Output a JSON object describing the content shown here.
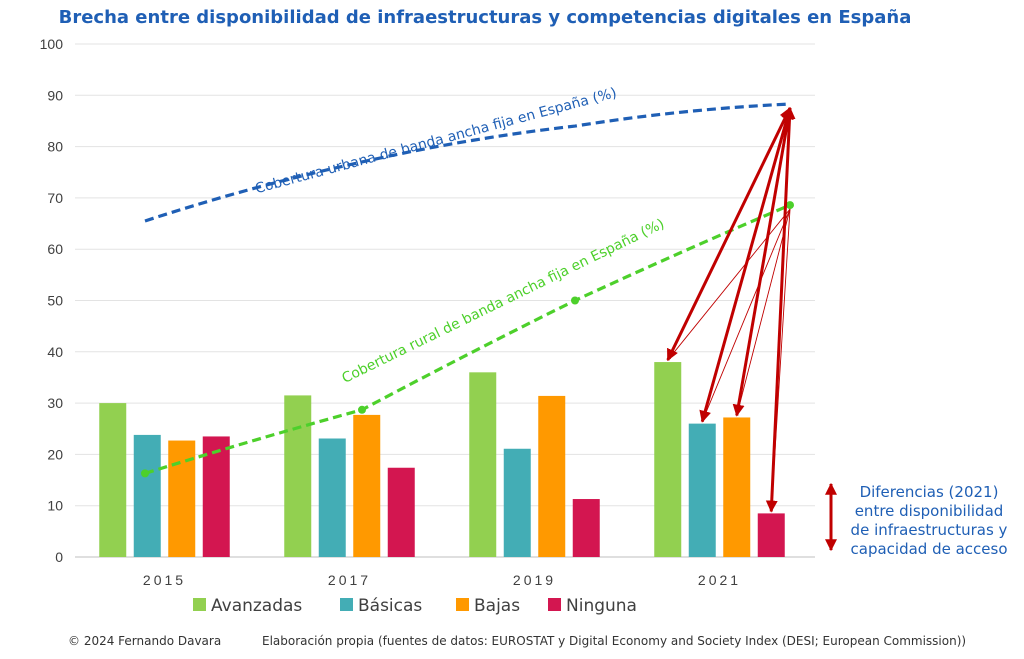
{
  "chart_data": {
    "type": "bar",
    "title": "Brecha entre disponibilidad de infraestructuras y competencias digitales en España",
    "xlabel": "",
    "ylabel": "",
    "ylim": [
      0,
      100
    ],
    "yticks": [
      0,
      10,
      20,
      30,
      40,
      50,
      60,
      70,
      80,
      90,
      100
    ],
    "categories": [
      "2015",
      "2017",
      "2019",
      "2021"
    ],
    "series": [
      {
        "name": "Avanzadas",
        "color": "#92d050",
        "values": [
          30,
          31.5,
          36,
          38
        ]
      },
      {
        "name": "Básicas",
        "color": "#43adb5",
        "values": [
          23.8,
          23.1,
          21.1,
          26
        ]
      },
      {
        "name": "Bajas",
        "color": "#ff9900",
        "values": [
          22.7,
          27.7,
          31.4,
          27.2
        ]
      },
      {
        "name": "Ninguna",
        "color": "#d31650",
        "values": [
          23.5,
          17.4,
          11.3,
          8.5
        ]
      }
    ],
    "lines": [
      {
        "name": "Cobertura urbana de banda ancha fija en España (%)",
        "color": "#1f5fb5",
        "x": [
          2015,
          2017,
          2019,
          2021
        ],
        "values": [
          65.5,
          77,
          84,
          88.3
        ]
      },
      {
        "name": "Cobertura rural de banda ancha fija en España (%)",
        "color": "#4dd02b",
        "x": [
          2015,
          2017,
          2019,
          2021
        ],
        "values": [
          16.3,
          28.7,
          50,
          68.6
        ]
      }
    ],
    "legend_position": "bottom"
  },
  "annotation": {
    "line1": "Diferencias (2021)",
    "line2": "entre disponibilidad",
    "line3": "de infraestructuras y",
    "line4": "capacidad de acceso",
    "arrow_color": "#c00000"
  },
  "footer": {
    "copyright": "© 2024 Fernando Davara",
    "source": "Elaboración propia (fuentes de datos: EUROSTAT y Digital Economy and Society Index (DESI; European Commission))"
  }
}
